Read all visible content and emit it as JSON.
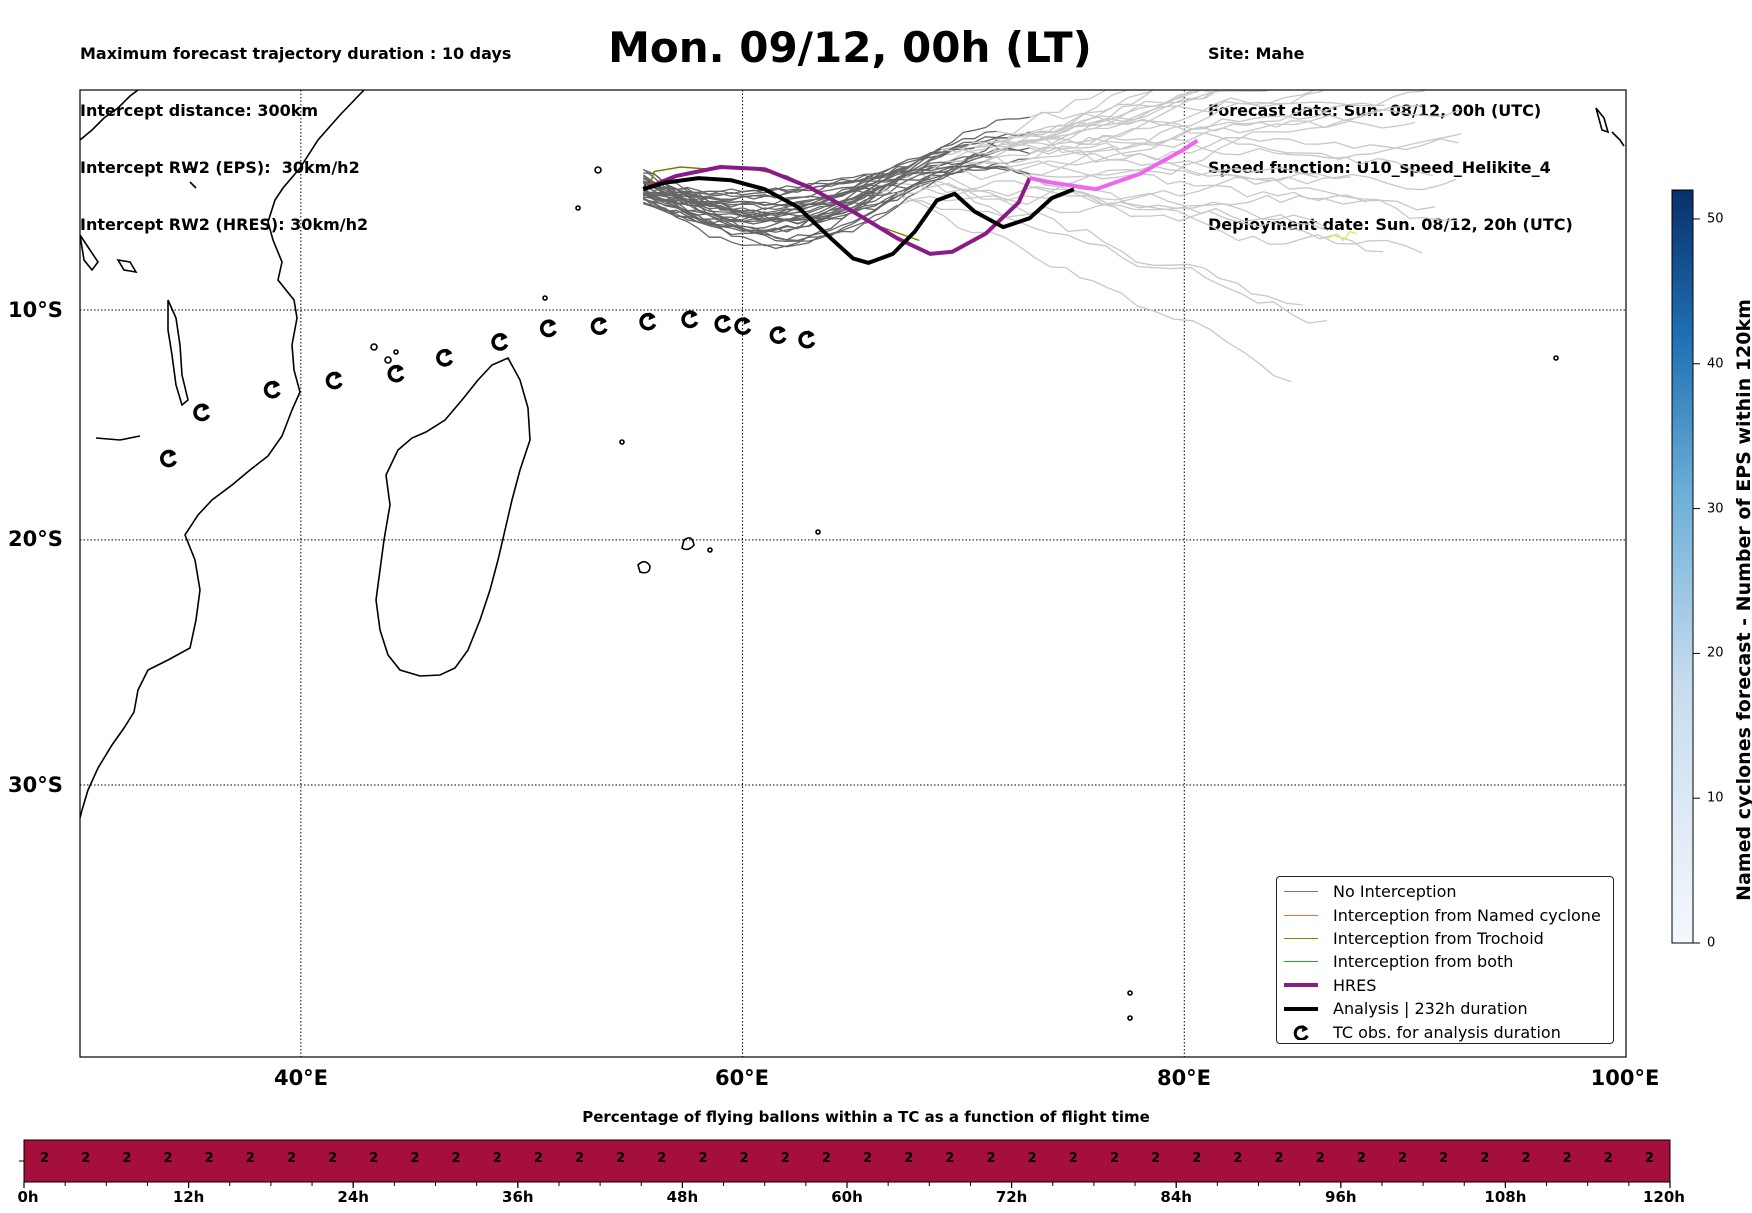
{
  "header_left": [
    "Maximum forecast trajectory duration : 10 days",
    "Intercept distance: 300km",
    "Intercept RW2 (EPS):  30km/h2",
    "Intercept RW2 (HRES): 30km/h2"
  ],
  "title": "Mon. 09/12, 00h (LT)",
  "header_right": [
    "Site: Mahe",
    "Forecast date: Sun. 08/12, 00h (UTC)",
    "Speed function: U10_speed_Helikite_4",
    "Deployment date: Sun. 08/12, 20h (UTC)"
  ],
  "map": {
    "lat_labels": [
      "10°S",
      "20°S",
      "30°S"
    ],
    "lon_labels": [
      "40°E",
      "60°E",
      "80°E",
      "100°E"
    ],
    "extent": {
      "lon": [
        30,
        100
      ],
      "lat": [
        -42,
        0.5
      ]
    },
    "tc_obs": [
      [
        34,
        -16.5
      ],
      [
        35.5,
        -14.5
      ],
      [
        38.7,
        -13.5
      ],
      [
        41.5,
        -13.1
      ],
      [
        44.3,
        -12.8
      ],
      [
        46.5,
        -12.1
      ],
      [
        49,
        -11.4
      ],
      [
        51.2,
        -10.8
      ],
      [
        53.5,
        -10.7
      ],
      [
        55.7,
        -10.5
      ],
      [
        57.6,
        -10.4
      ],
      [
        59.1,
        -10.6
      ],
      [
        60,
        -10.7
      ],
      [
        61.6,
        -11.1
      ],
      [
        62.9,
        -11.3
      ]
    ],
    "hres_track": [
      [
        55.5,
        -4.6
      ],
      [
        57,
        -4.0
      ],
      [
        59,
        -3.6
      ],
      [
        61,
        -3.7
      ],
      [
        63,
        -4.5
      ],
      [
        65,
        -5.6
      ],
      [
        67,
        -6.8
      ],
      [
        68.5,
        -7.5
      ],
      [
        69.5,
        -7.4
      ],
      [
        71,
        -6.6
      ],
      [
        72.5,
        -5.2
      ],
      [
        73,
        -4.1
      ],
      [
        74,
        -4.3
      ],
      [
        76,
        -4.6
      ],
      [
        78,
        -3.9
      ],
      [
        80,
        -2.8
      ],
      [
        80.6,
        -2.4
      ]
    ],
    "analysis_track": [
      [
        55.5,
        -4.6
      ],
      [
        56.5,
        -4.3
      ],
      [
        58,
        -4.1
      ],
      [
        59.5,
        -4.2
      ],
      [
        61,
        -4.6
      ],
      [
        62.5,
        -5.4
      ],
      [
        64,
        -6.8
      ],
      [
        65,
        -7.7
      ],
      [
        65.7,
        -7.9
      ],
      [
        66.8,
        -7.5
      ],
      [
        67.8,
        -6.5
      ],
      [
        68.8,
        -5.1
      ],
      [
        69.6,
        -4.8
      ],
      [
        70.5,
        -5.6
      ],
      [
        71.8,
        -6.3
      ],
      [
        73,
        -5.9
      ],
      [
        74,
        -5.0
      ],
      [
        75,
        -4.6
      ]
    ],
    "colors": {
      "hres": "#8b1a89",
      "hres_tail": "#ee66ee",
      "analysis": "#000000",
      "no_interception": "#666666",
      "trochoid": "#7a7a00",
      "named": "#ff5522",
      "both": "#22aa22",
      "ens_light": "#c8c8c8"
    }
  },
  "legend": [
    {
      "label": "No Interception",
      "color": "#777777",
      "width": 1.5,
      "type": "line"
    },
    {
      "label": "Interception from Named cyclone",
      "color": "#ff6633",
      "width": 1.5,
      "type": "line"
    },
    {
      "label": "Interception from Trochoid",
      "color": "#888800",
      "width": 1.5,
      "type": "line"
    },
    {
      "label": "Interception from both",
      "color": "#22aa22",
      "width": 1.5,
      "type": "line"
    },
    {
      "label": "HRES",
      "color": "#8b1a89",
      "width": 4,
      "type": "line"
    },
    {
      "label": "Analysis | 232h duration",
      "color": "#000000",
      "width": 4,
      "type": "line"
    },
    {
      "label": "TC obs. for analysis duration",
      "color": "#000000",
      "type": "marker"
    }
  ],
  "colorbar": {
    "title": "Named cyclones forecast - Number of EPS within 120km",
    "ticks": [
      "0",
      "10",
      "20",
      "30",
      "40",
      "50"
    ],
    "range": [
      0,
      52
    ],
    "color_low": "#f4f8fd",
    "color_high": "#08306b"
  },
  "timeline": {
    "title": "Percentage of flying ballons within a TC as a function of flight time",
    "cell_value": "2",
    "cell_count": 40,
    "color": "#a50f3c",
    "ticks": [
      "0h",
      "12h",
      "24h",
      "36h",
      "48h",
      "60h",
      "72h",
      "84h",
      "96h",
      "108h",
      "120h"
    ]
  }
}
